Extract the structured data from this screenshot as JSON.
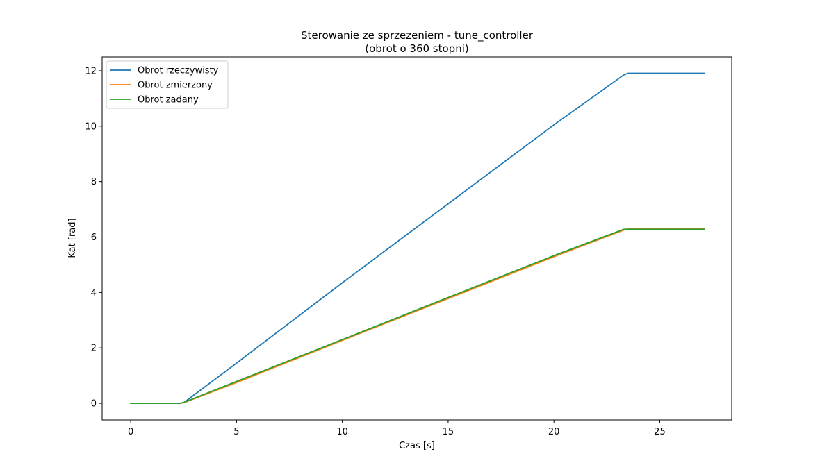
{
  "chart_data": {
    "type": "line",
    "title": "Sterowanie ze sprzezeniem - tune_controller",
    "subtitle": "(obrot o 360 stopni)",
    "xlabel": "Czas [s]",
    "ylabel": "Kat [rad]",
    "xlim": [
      -1.35,
      28.4
    ],
    "ylim": [
      -0.6,
      12.5
    ],
    "xticks": [
      0,
      5,
      10,
      15,
      20,
      25
    ],
    "yticks": [
      0,
      2,
      4,
      6,
      8,
      10,
      12
    ],
    "grid": false,
    "legend_position": "top-left",
    "series": [
      {
        "name": "Obrot rzeczywisty",
        "color": "#1f77b4",
        "x": [
          0,
          2.3,
          2.5,
          5,
          10,
          15,
          20,
          23.3,
          23.5,
          27.1
        ],
        "y": [
          0,
          0,
          0.02,
          1.45,
          4.35,
          7.2,
          10.05,
          11.85,
          11.91,
          11.91
        ]
      },
      {
        "name": "Obrot zmierzony",
        "color": "#ff7f0e",
        "x": [
          0,
          2.3,
          2.5,
          5,
          10,
          15,
          20,
          23.3,
          23.5,
          27.1
        ],
        "y": [
          0,
          0,
          0.02,
          0.75,
          2.27,
          3.78,
          5.29,
          6.25,
          6.3,
          6.3
        ]
      },
      {
        "name": "Obrot zadany",
        "color": "#2ca02c",
        "x": [
          0,
          2.3,
          2.5,
          5,
          10,
          15,
          20,
          23.3,
          23.5,
          27.1
        ],
        "y": [
          0,
          0,
          0.03,
          0.79,
          2.3,
          3.82,
          5.33,
          6.28,
          6.28,
          6.28
        ]
      }
    ]
  }
}
